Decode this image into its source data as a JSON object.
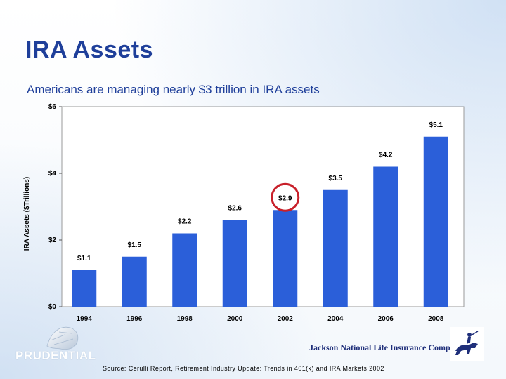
{
  "slide": {
    "title": "IRA Assets",
    "subtitle": "Americans are managing nearly $3 trillion in IRA assets",
    "source": "Source:  Cerulli Report, Retirement Industry Update:  Trends in 401(k) and IRA Markets 2002",
    "left_logo_text": "PRUDENTIAL",
    "right_logo_text": "Jackson National Life Insurance Company®"
  },
  "chart_data": {
    "type": "bar",
    "title": "",
    "categories": [
      "1994",
      "1996",
      "1998",
      "2000",
      "2002",
      "2004",
      "2006",
      "2008"
    ],
    "values": [
      1.1,
      1.5,
      2.2,
      2.6,
      2.9,
      3.5,
      4.2,
      5.1
    ],
    "data_labels": [
      "$1.1",
      "$1.5",
      "$2.2",
      "$2.6",
      "$2.9",
      "$3.5",
      "$4.2",
      "$5.1"
    ],
    "highlighted_category": "2002",
    "ylabel": "IRA Assets ($Trillions)",
    "xlabel": "",
    "ylim": [
      0,
      6
    ],
    "yticks": [
      0,
      2,
      4,
      6
    ],
    "ytick_labels": [
      "$0",
      "$2",
      "$4",
      "$6"
    ],
    "colors": {
      "bar": "#2b5fd9",
      "highlight_ring": "#c8202a",
      "axis_text": "#000000"
    }
  }
}
